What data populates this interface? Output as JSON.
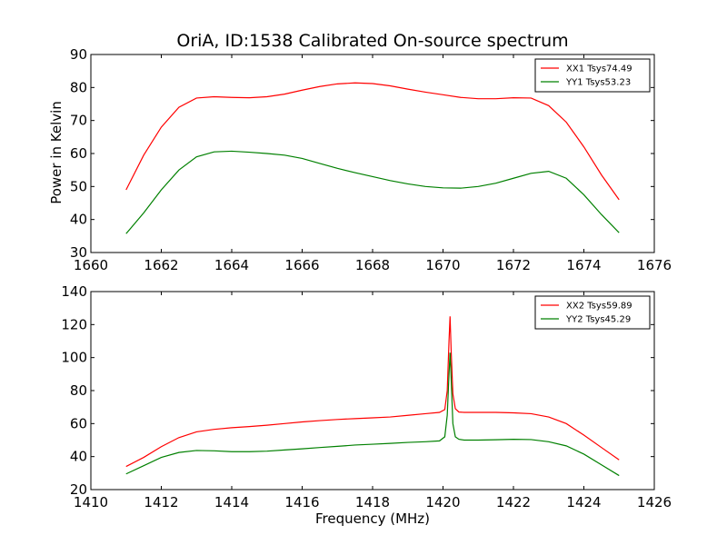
{
  "title": "OriA, ID:1538 Calibrated On-source spectrum",
  "chart_data": [
    {
      "type": "line",
      "xlabel": "",
      "ylabel": "Power in Kelvin",
      "xlim": [
        1660,
        1676
      ],
      "ylim": [
        30,
        90
      ],
      "xticks": [
        "1660",
        "1662",
        "1664",
        "1666",
        "1668",
        "1670",
        "1672",
        "1674",
        "1676"
      ],
      "yticks": [
        "30",
        "40",
        "50",
        "60",
        "70",
        "80",
        "90"
      ],
      "legend_position": "top-right",
      "series": [
        {
          "name": "XX1 Tsys74.49",
          "color": "#ff0000",
          "x": [
            1661.0,
            1661.5,
            1662.0,
            1662.5,
            1663.0,
            1663.5,
            1664.0,
            1664.5,
            1665.0,
            1665.5,
            1666.0,
            1666.5,
            1667.0,
            1667.5,
            1668.0,
            1668.5,
            1669.0,
            1669.5,
            1670.0,
            1670.5,
            1671.0,
            1671.5,
            1672.0,
            1672.5,
            1673.0,
            1673.5,
            1674.0,
            1674.5,
            1675.0
          ],
          "values": [
            49.0,
            59.5,
            68.0,
            74.0,
            76.8,
            77.2,
            77.0,
            76.9,
            77.2,
            78.0,
            79.2,
            80.3,
            81.1,
            81.4,
            81.2,
            80.5,
            79.5,
            78.6,
            77.8,
            77.0,
            76.6,
            76.6,
            76.9,
            76.8,
            74.5,
            69.5,
            62.0,
            53.5,
            46.0
          ]
        },
        {
          "name": "YY1 Tsys53.23",
          "color": "#008000",
          "x": [
            1661.0,
            1661.5,
            1662.0,
            1662.5,
            1663.0,
            1663.5,
            1664.0,
            1664.5,
            1665.0,
            1665.5,
            1666.0,
            1666.5,
            1667.0,
            1667.5,
            1668.0,
            1668.5,
            1669.0,
            1669.5,
            1670.0,
            1670.5,
            1671.0,
            1671.5,
            1672.0,
            1672.5,
            1673.0,
            1673.5,
            1674.0,
            1674.5,
            1675.0
          ],
          "values": [
            35.7,
            42.0,
            49.0,
            55.0,
            59.0,
            60.5,
            60.7,
            60.4,
            60.0,
            59.5,
            58.5,
            57.0,
            55.5,
            54.2,
            53.0,
            51.8,
            50.8,
            50.0,
            49.6,
            49.5,
            50.0,
            51.0,
            52.5,
            54.0,
            54.6,
            52.5,
            47.5,
            41.5,
            36.0
          ]
        }
      ]
    },
    {
      "type": "line",
      "xlabel": "Frequency (MHz)",
      "ylabel": "",
      "xlim": [
        1410,
        1426
      ],
      "ylim": [
        20,
        140
      ],
      "xticks": [
        "1410",
        "1412",
        "1414",
        "1416",
        "1418",
        "1420",
        "1422",
        "1424",
        "1426"
      ],
      "yticks": [
        "20",
        "40",
        "60",
        "80",
        "100",
        "120",
        "140"
      ],
      "legend_position": "top-right",
      "series": [
        {
          "name": "XX2 Tsys59.89",
          "color": "#ff0000",
          "x": [
            1411.0,
            1411.5,
            1412.0,
            1412.5,
            1413.0,
            1413.5,
            1414.0,
            1414.5,
            1415.0,
            1415.5,
            1416.0,
            1416.5,
            1417.0,
            1417.5,
            1418.0,
            1418.5,
            1419.0,
            1419.5,
            1419.9,
            1420.05,
            1420.12,
            1420.17,
            1420.2,
            1420.23,
            1420.28,
            1420.35,
            1420.45,
            1420.6,
            1421.0,
            1421.5,
            1422.0,
            1422.5,
            1423.0,
            1423.5,
            1424.0,
            1424.5,
            1425.0
          ],
          "values": [
            34.0,
            39.5,
            46.0,
            51.5,
            55.0,
            56.5,
            57.5,
            58.2,
            59.0,
            60.0,
            61.0,
            61.8,
            62.5,
            63.0,
            63.5,
            64.0,
            65.0,
            66.0,
            66.8,
            68.5,
            80.0,
            110.0,
            125.0,
            105.0,
            78.0,
            69.0,
            67.0,
            66.8,
            66.8,
            66.8,
            66.5,
            66.0,
            64.0,
            60.0,
            53.0,
            45.5,
            38.0
          ]
        },
        {
          "name": "YY2 Tsys45.29",
          "color": "#008000",
          "x": [
            1411.0,
            1411.5,
            1412.0,
            1412.5,
            1413.0,
            1413.5,
            1414.0,
            1414.5,
            1415.0,
            1415.5,
            1416.0,
            1416.5,
            1417.0,
            1417.5,
            1418.0,
            1418.5,
            1419.0,
            1419.5,
            1419.9,
            1420.05,
            1420.12,
            1420.17,
            1420.2,
            1420.23,
            1420.28,
            1420.35,
            1420.45,
            1420.6,
            1421.0,
            1421.5,
            1422.0,
            1422.5,
            1423.0,
            1423.5,
            1424.0,
            1424.5,
            1425.0
          ],
          "values": [
            29.5,
            34.5,
            39.5,
            42.5,
            43.7,
            43.5,
            43.0,
            43.0,
            43.3,
            44.0,
            44.7,
            45.5,
            46.2,
            47.0,
            47.5,
            48.0,
            48.6,
            49.0,
            49.5,
            52.0,
            65.0,
            90.0,
            103.0,
            88.0,
            60.0,
            52.0,
            50.5,
            50.0,
            50.0,
            50.2,
            50.5,
            50.3,
            49.0,
            46.5,
            41.5,
            35.0,
            28.5
          ]
        }
      ]
    }
  ]
}
